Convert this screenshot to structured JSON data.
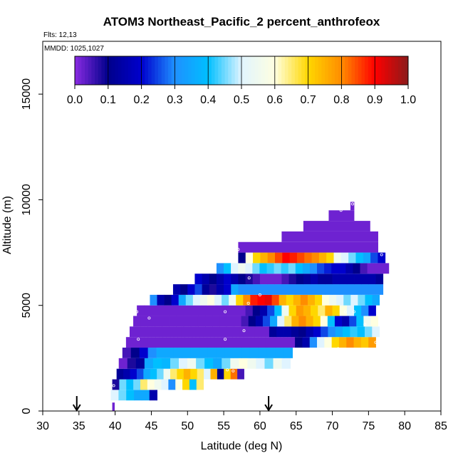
{
  "chart_data": {
    "type": "heatmap",
    "title": "ATOM3 Northeast_Pacific_2 percent_anthrofeox",
    "annotations": {
      "flights": "Flts: 12,13",
      "dates": "MMDD: 1025,1027"
    },
    "xlabel": "Latitude (deg N)",
    "ylabel": "Altitude (m)",
    "xlim": [
      30,
      85
    ],
    "ylim": [
      0,
      17500
    ],
    "x_ticks": [
      "30",
      "35",
      "40",
      "45",
      "50",
      "55",
      "60",
      "65",
      "70",
      "75",
      "80",
      "85"
    ],
    "y_ticks": [
      "0",
      "5000",
      "10000",
      "15000"
    ],
    "colorbar": {
      "range": [
        0,
        1
      ],
      "tick_labels": [
        "0.0",
        "0.1",
        "0.2",
        "0.3",
        "0.4",
        "0.5",
        "0.6",
        "0.7",
        "0.8",
        "0.9",
        "1.0"
      ],
      "colors": [
        "#8a2be2",
        "#00008b",
        "#0000cd",
        "#1e90ff",
        "#00bfff",
        "#e0f4ff",
        "#ffffe0",
        "#ffd700",
        "#ff8c00",
        "#ff0000",
        "#8b1a1a"
      ]
    },
    "arrows_at_latitude": [
      34.7,
      61.2
    ],
    "bands": [
      {
        "lat": [
          39.6,
          39.9
        ],
        "alt": [
          0,
          400
        ],
        "v": [
          0.02
        ]
      },
      {
        "lat": [
          39.4,
          45.8
        ],
        "alt": [
          500,
          1000
        ],
        "v": [
          0.5,
          0.45,
          0.4,
          0.35,
          0.35,
          0.15
        ]
      },
      {
        "lat": [
          39.6,
          52.2
        ],
        "alt": [
          1000,
          1500
        ],
        "v": [
          0.08,
          0.45,
          0.4,
          0.45,
          0.65,
          0.6,
          0.55,
          0.5,
          0.3,
          0.6,
          0.7,
          0.4,
          0.65
        ]
      },
      {
        "lat": [
          40.2,
          57.8
        ],
        "alt": [
          1500,
          2000
        ],
        "v": [
          0.12,
          0.15,
          0.2,
          0.25,
          0.35,
          0.4,
          0.45,
          0.55,
          0.65,
          0.7,
          0.75,
          0.7,
          0.65,
          0.5,
          0.75,
          0.1,
          0.7,
          0.82,
          0.05
        ]
      },
      {
        "lat": [
          40.5,
          64.2
        ],
        "alt": [
          2000,
          2500
        ],
        "v": [
          0.02,
          0.08,
          0.12,
          0.35,
          0.4,
          0.38,
          0.45,
          0.5,
          0.55,
          0.45,
          0.4,
          0.35,
          0.45,
          0.55,
          0.6,
          0.55,
          0.5,
          0.45,
          0.55,
          0.5
        ]
      },
      {
        "lat": [
          41.0,
          64.5
        ],
        "alt": [
          2500,
          3000
        ],
        "v": [
          0.05,
          0.1,
          0.2,
          0.3,
          0.35,
          0.35,
          0.35,
          0.35,
          0.35,
          0.35,
          0.35,
          0.35,
          0.35,
          0.35,
          0.35,
          0.35,
          0.35,
          0.35,
          0.35,
          0.35
        ]
      },
      {
        "lat": [
          41.5,
          76.0
        ],
        "alt": [
          3000,
          3500
        ],
        "v": [
          0.02,
          0.02,
          0.02,
          0.02,
          0.02,
          0.02,
          0.02,
          0.02,
          0.02,
          0.02,
          0.02,
          0.02,
          0.02,
          0.02,
          0.02,
          0.02,
          0.02,
          0.02,
          0.02,
          0.02,
          0.02,
          0.02,
          0.02,
          0.1,
          0.15,
          0.3,
          0.5,
          0.6,
          0.7,
          0.75,
          0.8,
          0.75,
          0.72,
          0.78
        ]
      },
      {
        "lat": [
          42.0,
          76.5
        ],
        "alt": [
          3500,
          4000
        ],
        "v": [
          0.02,
          0.02,
          0.02,
          0.02,
          0.02,
          0.02,
          0.02,
          0.02,
          0.02,
          0.02,
          0.02,
          0.02,
          0.02,
          0.02,
          0.02,
          0.02,
          0.02,
          0.02,
          0.02,
          0.12,
          0.15,
          0.15,
          0.12,
          0.1,
          0.15,
          0.2,
          0.25,
          0.3,
          0.35,
          0.4,
          0.42,
          0.4,
          0.45,
          0.5
        ]
      },
      {
        "lat": [
          42.5,
          76.3
        ],
        "alt": [
          4000,
          4500
        ],
        "v": [
          0.02,
          0.02,
          0.02,
          0.02,
          0.02,
          0.02,
          0.02,
          0.02,
          0.02,
          0.02,
          0.02,
          0.02,
          0.02,
          0.02,
          0.02,
          0.05,
          0.1,
          0.15,
          0.25,
          0.35,
          0.5,
          0.65,
          0.75,
          0.8,
          0.75,
          0.7,
          0.6,
          0.4,
          0.2,
          0.15,
          0.25,
          0.4,
          0.55,
          0.6
        ]
      },
      {
        "lat": [
          43.0,
          76.0
        ],
        "alt": [
          4500,
          5000
        ],
        "v": [
          0.02,
          0.02,
          0.02,
          0.02,
          0.02,
          0.02,
          0.02,
          0.02,
          0.02,
          0.02,
          0.02,
          0.02,
          0.02,
          0.02,
          0.02,
          0.05,
          0.1,
          0.15,
          0.25,
          0.4,
          0.55,
          0.7,
          0.78,
          0.75,
          0.7,
          0.65,
          0.75,
          0.7,
          0.6,
          0.5,
          0.4,
          0.3,
          0.2
        ]
      },
      {
        "lat": [
          44.8,
          76.5
        ],
        "alt": [
          5000,
          5500
        ],
        "v": [
          0.3,
          0.15,
          0.1,
          0.2,
          0.35,
          0.45,
          0.5,
          0.55,
          0.6,
          0.5,
          0.45,
          0.55,
          0.7,
          0.8,
          0.88,
          0.9,
          0.92,
          0.85,
          0.75,
          0.7,
          0.75,
          0.8,
          0.75,
          0.7,
          0.6,
          0.55,
          0.5,
          0.45,
          0.5,
          0.45,
          0.4,
          0.35
        ]
      },
      {
        "lat": [
          48.0,
          77.0
        ],
        "alt": [
          5500,
          6000
        ],
        "v": [
          0.15,
          0.1,
          0.2,
          0.25,
          0.12,
          0.08,
          0.15,
          0.2,
          0.35,
          0.3,
          0.3,
          0.3,
          0.3,
          0.3,
          0.3,
          0.3,
          0.3,
          0.3,
          0.3,
          0.3,
          0.3,
          0.3,
          0.3,
          0.3,
          0.3,
          0.3,
          0.3,
          0.3,
          0.3
        ]
      },
      {
        "lat": [
          51.0,
          77.0
        ],
        "alt": [
          6000,
          6500
        ],
        "v": [
          0.2,
          0.15,
          0.1,
          0.15,
          0.2,
          0.15,
          0.1,
          0.08,
          0.05,
          0.02,
          0.02,
          0.02,
          0.05,
          0.08,
          0.1,
          0.12,
          0.15,
          0.12,
          0.12,
          0.15,
          0.15,
          0.15,
          0.15,
          0.15,
          0.15,
          0.12
        ]
      },
      {
        "lat": [
          54.0,
          77.8
        ],
        "alt": [
          6500,
          7000
        ],
        "v": [
          0.3,
          0.4,
          0.5,
          0.55,
          0.5,
          0.45,
          0.4,
          0.42,
          0.45,
          0.42,
          0.45,
          0.4,
          0.35,
          0.3,
          0.25,
          0.22,
          0.2,
          0.2,
          0.15,
          0.1,
          0.05,
          0.02,
          0.02,
          0.02
        ]
      },
      {
        "lat": [
          57.0,
          77.3
        ],
        "alt": [
          7000,
          7500
        ],
        "v": [
          0.1,
          0.6,
          0.7,
          0.75,
          0.8,
          0.85,
          0.9,
          0.88,
          0.85,
          0.82,
          0.8,
          0.75,
          0.7,
          0.55,
          0.5,
          0.45,
          0.4,
          0.35,
          0.25,
          0.2
        ]
      },
      {
        "lat": [
          57.0,
          76.3
        ],
        "alt": [
          7500,
          8000
        ],
        "v": [
          0.02
        ]
      },
      {
        "lat": [
          63.0,
          76.3
        ],
        "alt": [
          8000,
          8500
        ],
        "v": [
          0.02
        ]
      },
      {
        "lat": [
          66.0,
          75.2
        ],
        "alt": [
          8500,
          9000
        ],
        "v": [
          0.02
        ]
      },
      {
        "lat": [
          69.5,
          73.0
        ],
        "alt": [
          9000,
          9500
        ],
        "v": [
          0.02
        ]
      },
      {
        "lat": [
          72.5,
          73.0
        ],
        "alt": [
          9500,
          9900
        ],
        "v": [
          0.02
        ]
      }
    ],
    "markers": [
      [
        39.8,
        1200
      ],
      [
        43.0,
        4700
      ],
      [
        44.7,
        4400
      ],
      [
        43.2,
        3400
      ],
      [
        57.0,
        7650
      ],
      [
        58.5,
        6300
      ],
      [
        57.8,
        3800
      ],
      [
        55.2,
        3400
      ],
      [
        55.2,
        4700
      ],
      [
        58.4,
        5100
      ],
      [
        60.0,
        5500
      ],
      [
        71.8,
        4700
      ],
      [
        73.0,
        4700
      ],
      [
        74.5,
        4100
      ],
      [
        76.0,
        3250
      ],
      [
        70.8,
        2950
      ],
      [
        71.2,
        9500
      ],
      [
        72.8,
        9800
      ],
      [
        76.8,
        7400
      ],
      [
        55.5,
        1950
      ],
      [
        56.3,
        1900
      ]
    ]
  }
}
